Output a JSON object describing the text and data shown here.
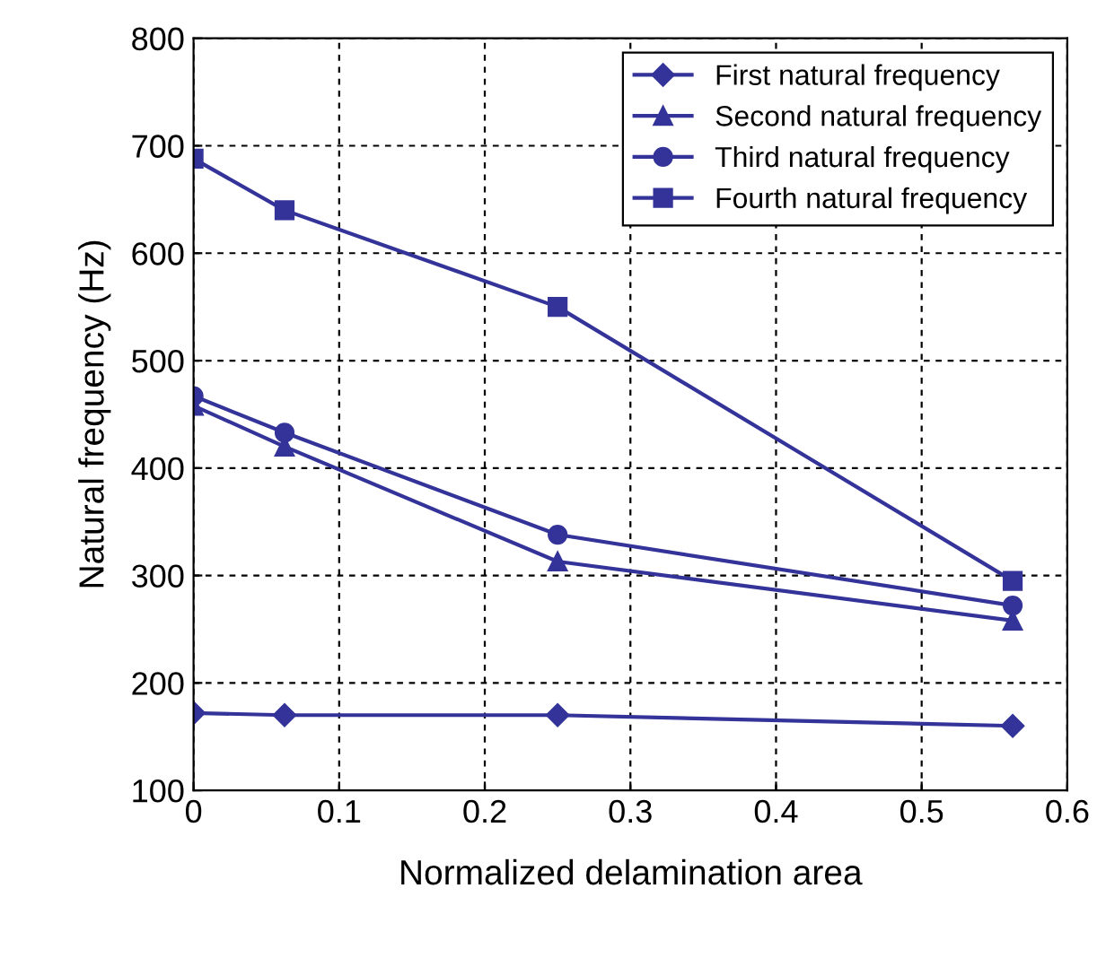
{
  "chart_data": {
    "type": "line",
    "xlabel": "Normalized delamination area",
    "ylabel": "Natural frequency (Hz)",
    "x": [
      0,
      0.0625,
      0.25,
      0.5625
    ],
    "series": [
      {
        "name": "First natural frequency",
        "color": "#333399",
        "marker": "diamond",
        "values": [
          172,
          170,
          170,
          160
        ]
      },
      {
        "name": "Second natural frequency",
        "color": "#333399",
        "marker": "triangle",
        "values": [
          458,
          420,
          313,
          258
        ]
      },
      {
        "name": "Third natural frequency",
        "color": "#333399",
        "marker": "circle",
        "values": [
          467,
          433,
          338,
          272
        ]
      },
      {
        "name": "Fourth natural frequency",
        "color": "#333399",
        "marker": "square",
        "values": [
          688,
          640,
          550,
          295
        ]
      }
    ],
    "xlim": [
      0,
      0.6
    ],
    "xticks": [
      0,
      0.1,
      0.2,
      0.3,
      0.4,
      0.5,
      0.6
    ],
    "ylim": [
      100,
      800
    ],
    "yticks": [
      100,
      200,
      300,
      400,
      500,
      600,
      700,
      800
    ],
    "grid": true,
    "legend": "top right",
    "line_style": "solid"
  }
}
